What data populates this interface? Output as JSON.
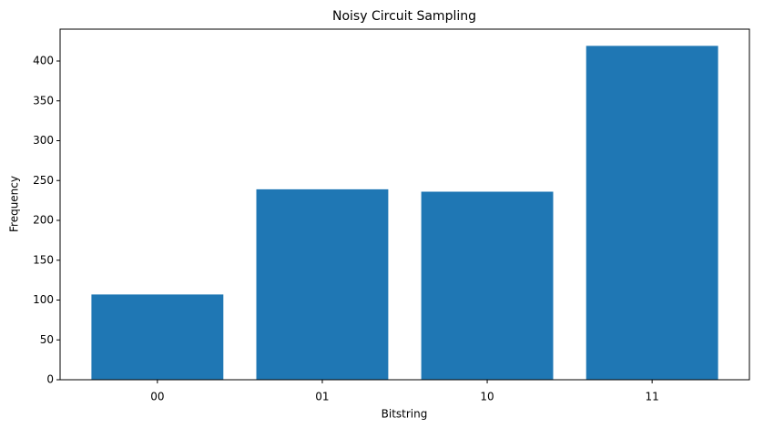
{
  "chart_data": {
    "type": "bar",
    "title": "Noisy Circuit Sampling",
    "x_label": "Bitstring",
    "y_label": "Frequency",
    "categories": [
      "00",
      "01",
      "10",
      "11"
    ],
    "values": [
      107,
      239,
      236,
      419
    ],
    "color": "#1f77b4",
    "ylim": [
      0,
      440
    ],
    "yticks": [
      0,
      50,
      100,
      150,
      200,
      250,
      300,
      350,
      400
    ],
    "grid": false
  }
}
